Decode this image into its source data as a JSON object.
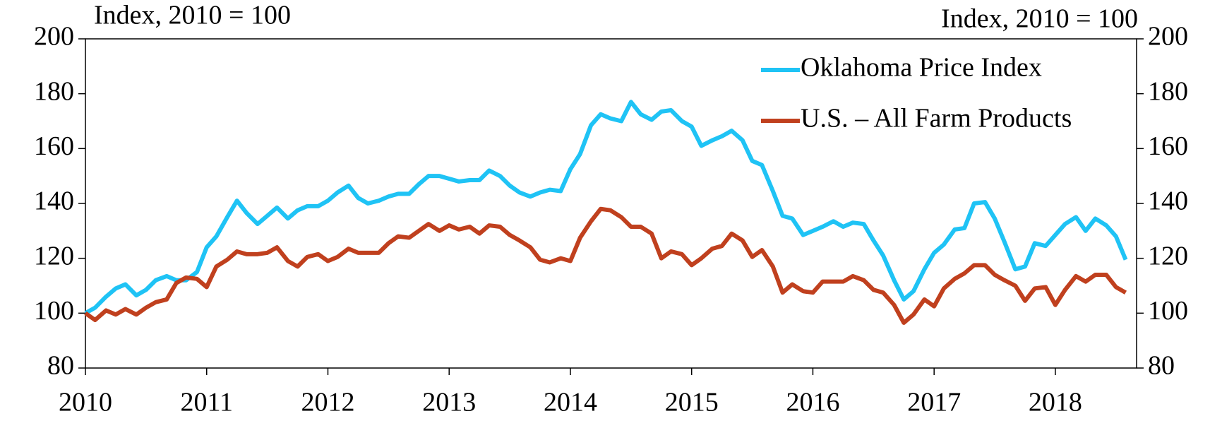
{
  "chart_data": {
    "type": "line",
    "ylabel": "Index, 2010 = 100",
    "y2label": "Index, 2010 = 100",
    "x": [
      2010.0,
      2010.08,
      2010.17,
      2010.25,
      2010.33,
      2010.42,
      2010.5,
      2010.58,
      2010.67,
      2010.75,
      2010.83,
      2010.92,
      2011.0,
      2011.08,
      2011.17,
      2011.25,
      2011.33,
      2011.42,
      2011.5,
      2011.58,
      2011.67,
      2011.75,
      2011.83,
      2011.92,
      2012.0,
      2012.08,
      2012.17,
      2012.25,
      2012.33,
      2012.42,
      2012.5,
      2012.58,
      2012.67,
      2012.75,
      2012.83,
      2012.92,
      2013.0,
      2013.08,
      2013.17,
      2013.25,
      2013.33,
      2013.42,
      2013.5,
      2013.58,
      2013.67,
      2013.75,
      2013.83,
      2013.92,
      2014.0,
      2014.08,
      2014.17,
      2014.25,
      2014.33,
      2014.42,
      2014.5,
      2014.58,
      2014.67,
      2014.75,
      2014.83,
      2014.92,
      2015.0,
      2015.08,
      2015.17,
      2015.25,
      2015.33,
      2015.42,
      2015.5,
      2015.58,
      2015.67,
      2015.75,
      2015.83,
      2015.92,
      2016.0,
      2016.08,
      2016.17,
      2016.25,
      2016.33,
      2016.42,
      2016.5,
      2016.58,
      2016.67,
      2016.75,
      2016.83,
      2016.92,
      2017.0,
      2017.08,
      2017.17,
      2017.25,
      2017.33,
      2017.42,
      2017.5,
      2017.58,
      2017.67,
      2017.75,
      2017.83,
      2017.92,
      2018.0,
      2018.08,
      2018.17,
      2018.25,
      2018.33,
      2018.42,
      2018.5,
      2018.58
    ],
    "series": [
      {
        "name": "Oklahoma Price Index",
        "color": "#1fc3f5",
        "values": [
          100,
          102,
          106,
          109,
          110.5,
          106.5,
          108.5,
          112,
          113.5,
          112,
          112,
          115,
          124,
          128,
          135,
          141,
          136.5,
          132.5,
          135.5,
          138.5,
          134.5,
          137.5,
          139,
          139,
          141,
          144,
          146.5,
          142,
          140,
          141,
          142.5,
          143.5,
          143.5,
          147,
          150,
          150,
          149,
          148,
          148.5,
          148.5,
          152,
          150,
          146.5,
          144,
          142.5,
          144,
          145,
          144.5,
          152.5,
          158,
          168.5,
          172.5,
          171,
          170,
          177,
          172.5,
          170.5,
          173.5,
          174,
          170,
          168,
          161,
          163,
          164.5,
          166.5,
          163,
          155.5,
          154,
          144.5,
          135.5,
          134.5,
          128.5,
          130,
          131.5,
          133.5,
          131.5,
          133,
          132.5,
          126.5,
          121,
          112,
          105,
          108,
          116,
          122,
          125,
          130.5,
          131,
          140,
          140.5,
          134.5,
          126,
          116,
          117,
          125.5,
          124.5,
          128.5,
          132.5,
          135,
          130,
          134.5,
          132,
          128,
          119.5
        ]
      },
      {
        "name": "U.S. – All Farm Products",
        "color": "#c0401e",
        "values": [
          100,
          97.5,
          101,
          99.5,
          101.5,
          99.5,
          102,
          104,
          105,
          111,
          113,
          112.5,
          109.5,
          117,
          119.5,
          122.5,
          121.5,
          121.5,
          122,
          124,
          119,
          117,
          120.5,
          121.5,
          119,
          120.5,
          123.5,
          122,
          122,
          122,
          125.5,
          128,
          127.5,
          130,
          132.5,
          130,
          132,
          130.5,
          131.5,
          129,
          132,
          131.5,
          128.5,
          126.5,
          124,
          119.5,
          118.5,
          120,
          119,
          127.5,
          133.5,
          138,
          137.5,
          135,
          131.5,
          131.5,
          129,
          120,
          122.5,
          121.5,
          117.5,
          120,
          123.5,
          124.5,
          129,
          126.5,
          120.5,
          123,
          117,
          107.5,
          110.5,
          108,
          107.5,
          111.5,
          111.5,
          111.5,
          113.5,
          112,
          108.5,
          107.5,
          103,
          96.5,
          99.5,
          105,
          102.5,
          109,
          112.5,
          114.5,
          117.5,
          117.5,
          114,
          112,
          110,
          104.5,
          109,
          109.5,
          103,
          108.5,
          113.5,
          111.5,
          114,
          114,
          109.5,
          107.5
        ]
      }
    ],
    "xlim": [
      2010,
      2018.67
    ],
    "xticks": [
      2010,
      2011,
      2012,
      2013,
      2014,
      2015,
      2016,
      2017,
      2018
    ],
    "ylim": [
      80,
      200
    ],
    "yticks": [
      80,
      100,
      120,
      140,
      160,
      180,
      200
    ],
    "y2lim": [
      80,
      200
    ],
    "y2ticks": [
      80,
      100,
      120,
      140,
      160,
      180,
      200
    ],
    "legend": "top-right",
    "grid": false
  }
}
